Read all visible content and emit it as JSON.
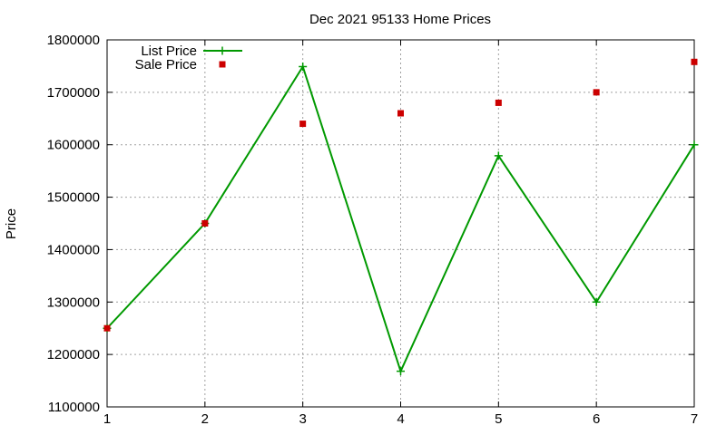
{
  "chart_data": {
    "type": "line",
    "title": "Dec 2021 95133 Home Prices",
    "xlabel": "",
    "ylabel": "Price",
    "x": [
      1,
      2,
      3,
      4,
      5,
      6,
      7
    ],
    "xlim": [
      1,
      7
    ],
    "ylim": [
      1100000,
      1800000
    ],
    "xticks": [
      "1",
      "2",
      "3",
      "4",
      "5",
      "6",
      "7"
    ],
    "yticks": [
      "1100000",
      "1200000",
      "1300000",
      "1400000",
      "1500000",
      "1600000",
      "1700000",
      "1800000"
    ],
    "yticks_values": [
      1100000,
      1200000,
      1300000,
      1400000,
      1500000,
      1600000,
      1700000,
      1800000
    ],
    "grid": true,
    "legend_position": "top-left",
    "series": [
      {
        "name": "List Price",
        "style": "line-with-plus-markers",
        "color": "#009900",
        "values": [
          1250000,
          1450000,
          1749000,
          1168000,
          1579000,
          1300000,
          1600000
        ]
      },
      {
        "name": "Sale Price",
        "style": "square-markers",
        "color": "#cc0000",
        "values": [
          1250000,
          1450000,
          1640000,
          1660000,
          1680000,
          1700000,
          1758000
        ]
      }
    ]
  }
}
